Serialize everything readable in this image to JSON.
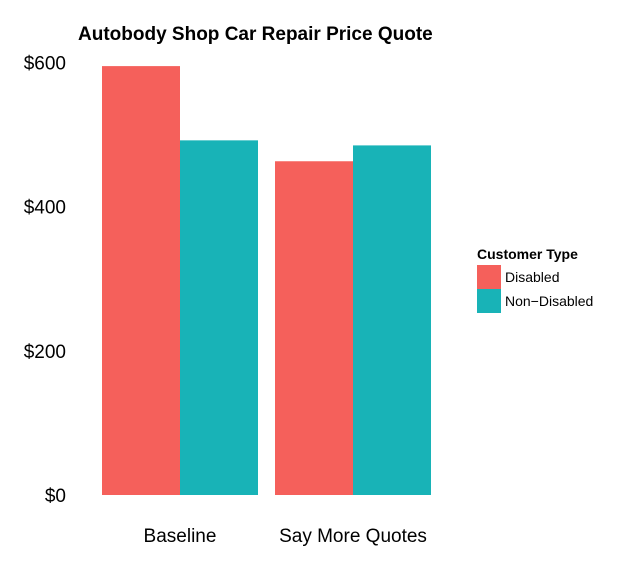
{
  "chart_data": {
    "type": "bar",
    "title": "Autobody Shop Car Repair Price Quote",
    "xlabel": "",
    "ylabel": "",
    "categories": [
      "Baseline",
      "Say More Quotes"
    ],
    "series": [
      {
        "name": "Disabled",
        "values": [
          595,
          463
        ],
        "color": "#F5605B"
      },
      {
        "name": "Non−Disabled",
        "values": [
          492,
          485
        ],
        "color": "#18B3B7"
      }
    ],
    "ylim": [
      0,
      600
    ],
    "yticks": [
      0,
      200,
      400,
      600
    ],
    "ytick_labels": [
      "$0",
      "$200",
      "$400",
      "$600"
    ],
    "grid": false,
    "legend": {
      "title": "Customer Type",
      "placement": "right"
    }
  }
}
